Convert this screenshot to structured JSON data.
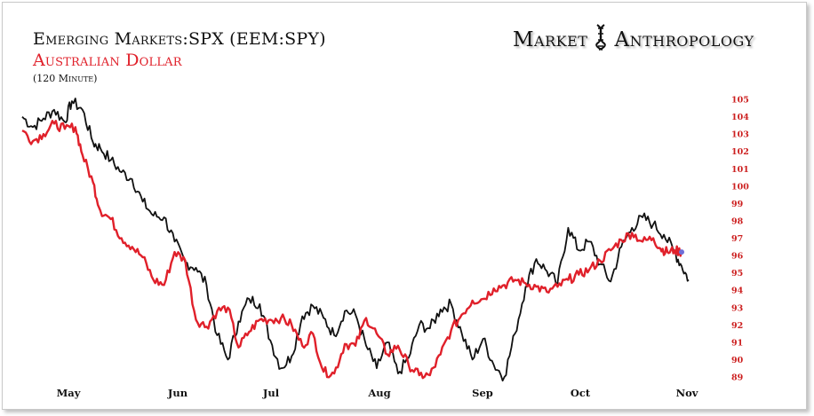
{
  "header": {
    "title": "Emerging Markets:SPX (EEM:SPY)",
    "subtitle": "Australian Dollar",
    "interval": "(120 Minute)",
    "brand_left": "Market",
    "brand_right": "Anthropology"
  },
  "colors": {
    "series_a": "#111111",
    "series_b": "#e0202a",
    "axis_labels": "#cc1f1f",
    "marker": "#6f6fd8"
  },
  "icons": {
    "brand_logo": "dna-helix-icon"
  },
  "chart_data": {
    "type": "line",
    "title": "Emerging Markets:SPX (EEM:SPY)",
    "subtitle": "Australian Dollar",
    "xlabel": "",
    "ylabel": "",
    "x_ticks": [
      "May",
      "Jun",
      "Jul",
      "Aug",
      "Sep",
      "Oct",
      "Nov"
    ],
    "y_ticks": [
      "89",
      "90",
      "91",
      "92",
      "93",
      "94",
      "95",
      "96",
      "97",
      "98",
      "99",
      "100",
      "101",
      "102",
      "103",
      "104",
      "105"
    ],
    "ylim": [
      89,
      105
    ],
    "grid": false,
    "legend": "none",
    "right_axis": true,
    "series": [
      {
        "x": [
          0,
          3,
          6,
          9,
          12,
          14,
          17,
          20,
          22,
          25,
          28,
          31,
          34,
          37,
          40,
          43,
          46,
          49,
          52,
          55,
          58,
          61,
          64,
          67,
          70,
          73,
          76,
          79,
          82,
          85,
          88,
          91,
          94,
          97,
          100,
          103,
          106,
          109,
          112,
          115,
          118,
          121,
          124,
          127,
          130,
          133,
          136,
          139,
          142,
          145,
          148,
          151,
          154,
          157,
          160,
          163,
          166,
          169,
          172,
          175,
          178,
          181,
          184,
          186,
          188
        ],
        "values": [
          104.0,
          103.4,
          103.9,
          104.4,
          103.7,
          104.9,
          104.4,
          102.5,
          102.2,
          101.5,
          100.8,
          100.4,
          99.1,
          98.3,
          98.2,
          96.8,
          95.6,
          95.3,
          94.3,
          91.4,
          90.0,
          92.2,
          93.5,
          93.2,
          91.1,
          89.5,
          90.2,
          92.5,
          93.1,
          92.4,
          91.4,
          92.8,
          92.6,
          90.8,
          89.5,
          91.0,
          89.2,
          90.1,
          92.0,
          91.8,
          92.9,
          93.2,
          91.5,
          90.0,
          91.2,
          89.7,
          89.0,
          91.5,
          94.2,
          95.8,
          95.1,
          94.4,
          97.6,
          96.3,
          96.8,
          95.5,
          94.5,
          96.5,
          97.6,
          98.2,
          97.8,
          97.2,
          96.2,
          95.4,
          94.6
        ]
      },
      {
        "x": [
          0,
          3,
          6,
          9,
          12,
          15,
          17,
          20,
          22,
          25,
          28,
          31,
          34,
          37,
          40,
          43,
          46,
          49,
          52,
          55,
          58,
          61,
          64,
          67,
          70,
          73,
          76,
          79,
          82,
          85,
          88,
          91,
          94,
          97,
          100,
          103,
          106,
          109,
          112,
          115,
          118,
          121,
          124,
          127,
          130,
          133,
          136,
          139,
          142,
          145,
          148,
          151,
          154,
          157,
          160,
          163,
          166,
          169,
          172,
          175,
          178,
          180,
          182,
          184,
          186
        ],
        "values": [
          103.2,
          102.6,
          103.0,
          103.6,
          103.3,
          103.4,
          101.8,
          100.2,
          98.6,
          98.1,
          97.0,
          96.5,
          95.9,
          94.6,
          94.3,
          96.2,
          95.7,
          92.3,
          91.9,
          92.8,
          93.0,
          90.7,
          91.6,
          92.3,
          92.3,
          92.4,
          92.0,
          90.8,
          91.5,
          89.3,
          89.2,
          90.9,
          90.8,
          92.4,
          91.5,
          90.3,
          90.8,
          89.7,
          89.1,
          89.1,
          90.3,
          91.7,
          92.6,
          93.4,
          93.5,
          94.1,
          94.3,
          94.6,
          94.4,
          94.2,
          93.9,
          94.2,
          94.6,
          94.9,
          95.2,
          95.7,
          96.3,
          96.9,
          97.3,
          96.8,
          97.0,
          96.4,
          96.2,
          96.3,
          96.2
        ]
      }
    ]
  }
}
